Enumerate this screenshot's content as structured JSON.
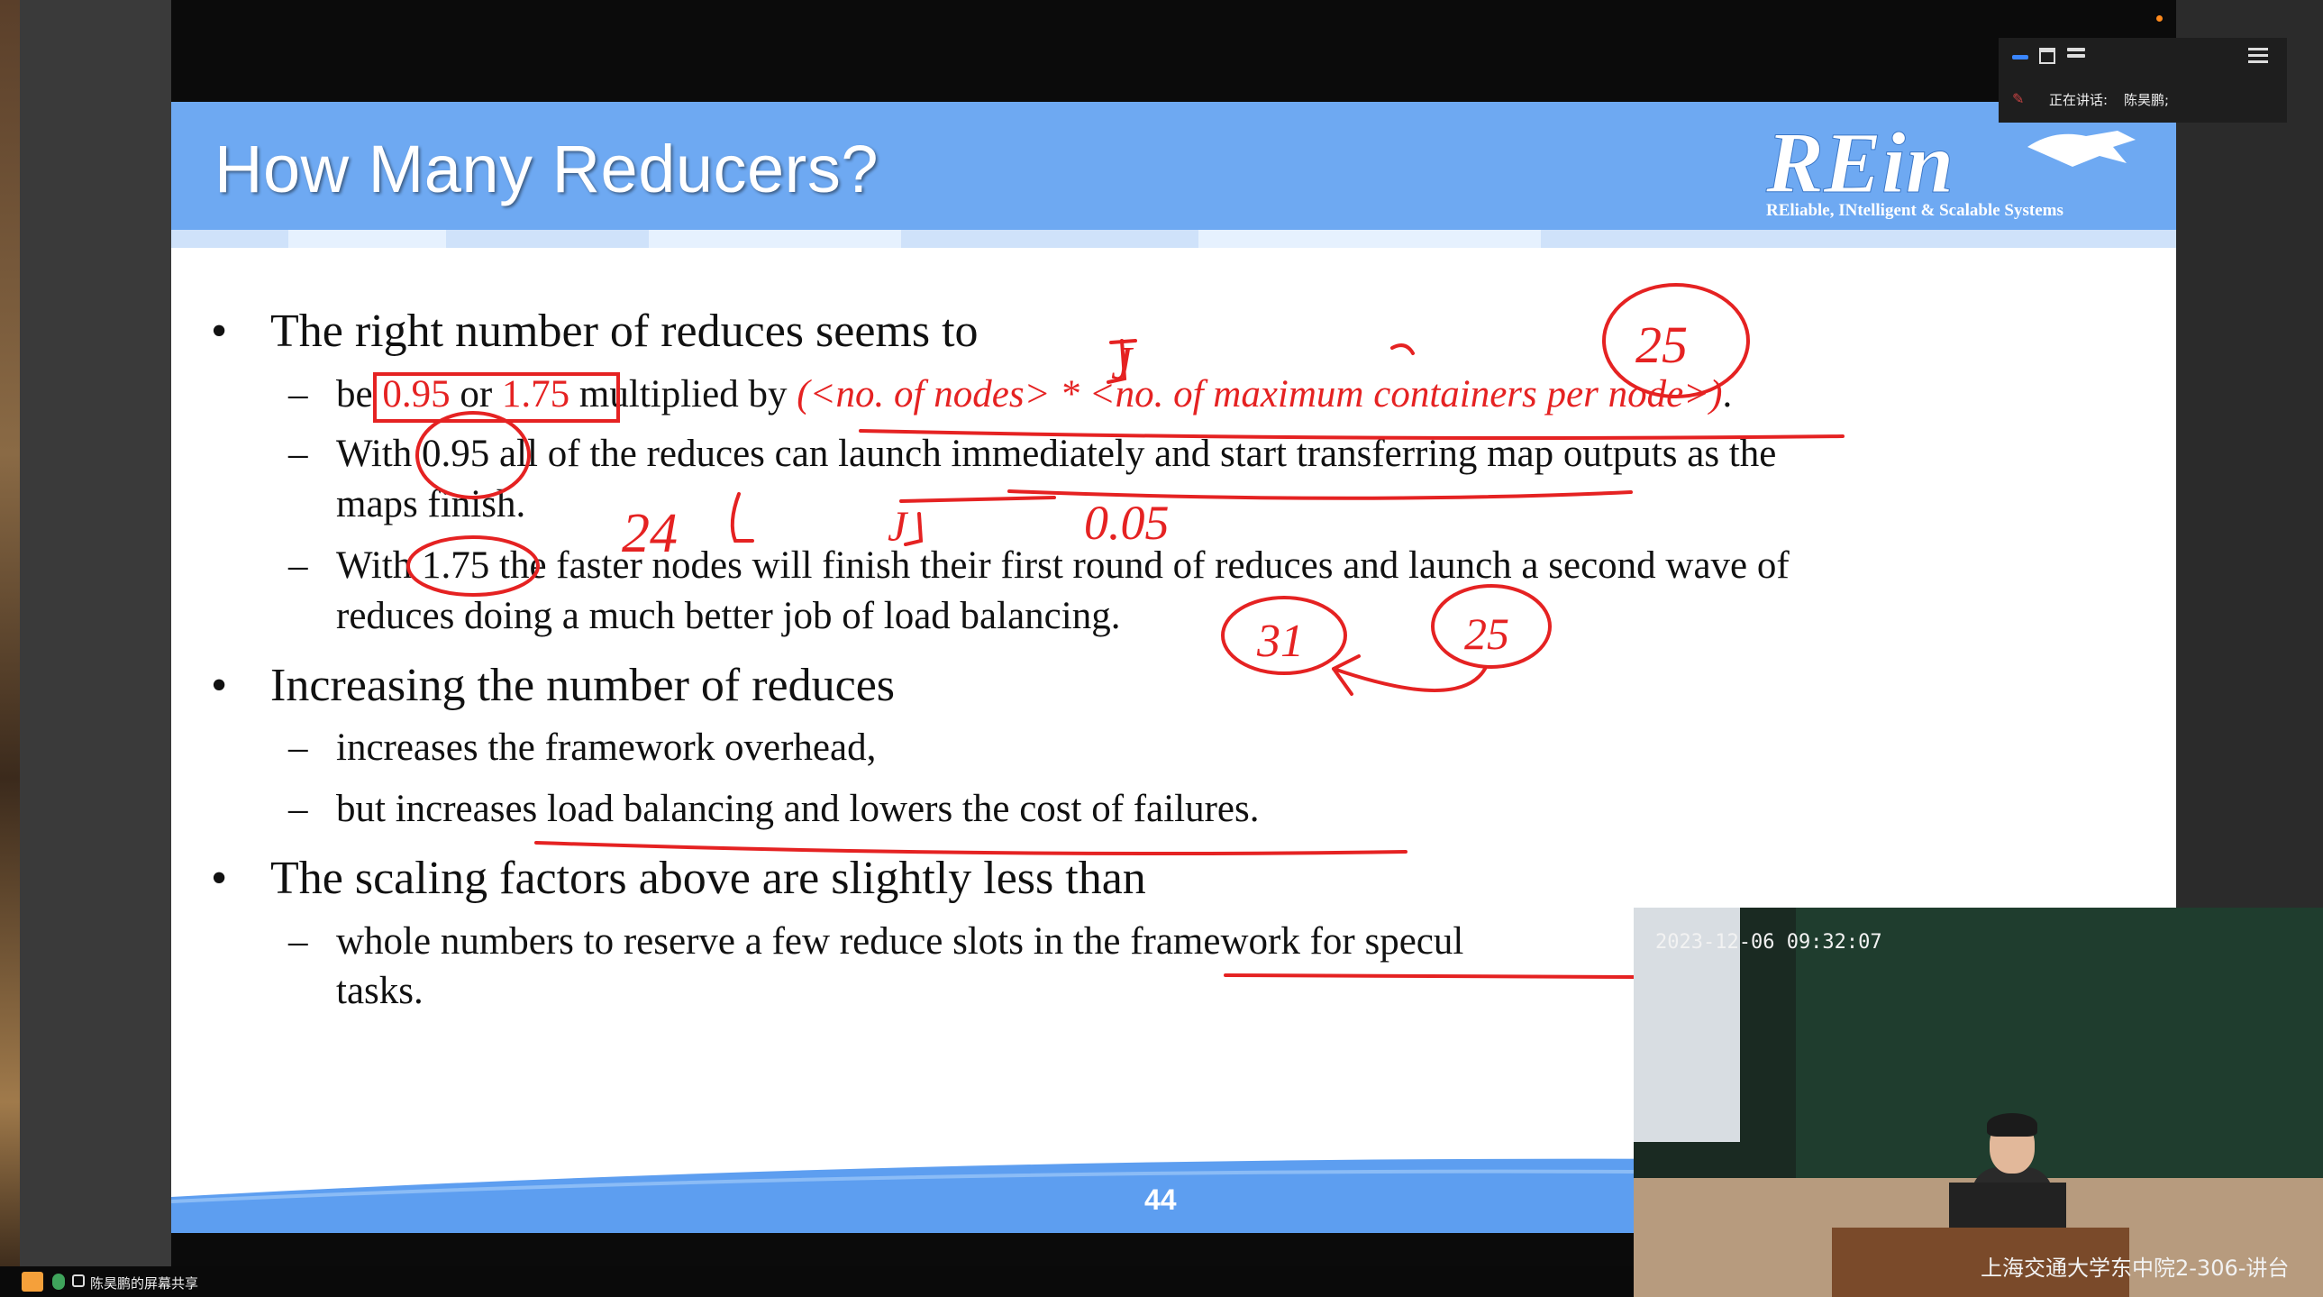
{
  "slide": {
    "title": "How Many Reducers?",
    "logo_text": "REin",
    "logo_tagline": "REliable, INtelligent & Scalable Systems",
    "page_number": "44",
    "bullets": [
      {
        "text": "The right number of reduces seems to",
        "subs": [
          {
            "pre": "be",
            "v1": "0.95",
            "mid": "or",
            "v2": "1.75",
            "after": "multiplied by",
            "formula": "(<no. of nodes> * <no. of maximum containers per node>)",
            "end": "."
          },
          {
            "pre": "With",
            "v": "0.95",
            "line1": "all of the reduces can launch immediately and start transferring map outputs as the",
            "line2": "maps finish."
          },
          {
            "pre": "With",
            "v": "1.75",
            "line1": "the faster nodes will finish their first round of reduces and launch a second wave of",
            "line2": "reduces doing a much better job of load balancing."
          }
        ]
      },
      {
        "text": "Increasing the number of reduces",
        "subs": [
          {
            "text": "increases the framework overhead,"
          },
          {
            "text": "but increases load balancing and lowers the cost of failures."
          }
        ]
      },
      {
        "text": "The scaling factors above are slightly less than",
        "subs": [
          {
            "line1": "whole numbers to reserve a few reduce slots in the framework for specul",
            "line2": "tasks."
          }
        ]
      }
    ],
    "annotations": [
      "J",
      "J",
      "25",
      "24",
      "0.05",
      "31",
      "25"
    ]
  },
  "toolbar": {
    "speaking_label": "正在讲话:",
    "speaker_name": "陈昊鹏;",
    "icons": [
      "blue-dash-icon",
      "window-icon",
      "list-icon",
      "menu-icon"
    ]
  },
  "video": {
    "timestamp": "2023-12-06 09:32:07",
    "location": "上海交通大学东中院2-306-讲台"
  },
  "share_bar": {
    "label": "陈昊鹏的屏幕共享"
  },
  "colors": {
    "header_blue": "#6ea9f2",
    "annotation_red": "#e52222"
  }
}
